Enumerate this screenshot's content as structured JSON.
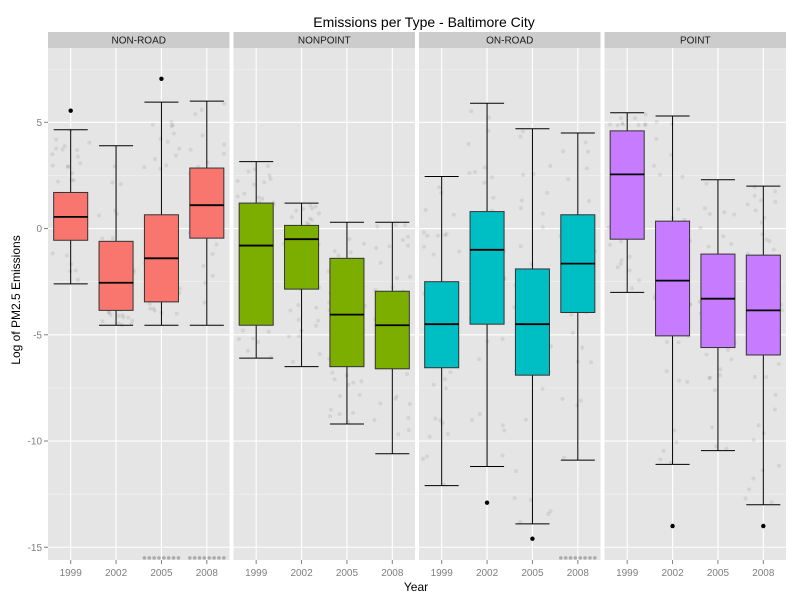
{
  "chart_data": {
    "type": "box",
    "title": "Emissions per Type - Baltimore City",
    "xlabel": "Year",
    "ylabel": "Log of PM2.5 Emissions",
    "ylim": [
      -15.6,
      8.5
    ],
    "yticks": [
      5,
      0,
      -5,
      -10,
      -15
    ],
    "ytick_labels": [
      "5",
      "0",
      "-5",
      "-10",
      "-15"
    ],
    "categories": [
      "1999",
      "2002",
      "2005",
      "2008"
    ],
    "grid": true,
    "panel_background": "#e5e5e5",
    "strip_background": "#cccccc",
    "facets": [
      {
        "name": "NON-ROAD",
        "color": "#f8766d",
        "boxes": [
          {
            "year": "1999",
            "whisker_low": -2.6,
            "q1": -0.55,
            "median": 0.55,
            "q3": 1.7,
            "whisker_high": 4.65,
            "outliers": [
              5.55
            ]
          },
          {
            "year": "2002",
            "whisker_low": -4.55,
            "q1": -3.85,
            "median": -2.55,
            "q3": -0.6,
            "whisker_high": 3.9,
            "outliers": []
          },
          {
            "year": "2005",
            "whisker_low": -4.55,
            "q1": -3.45,
            "median": -1.4,
            "q3": 0.65,
            "whisker_high": 5.95,
            "outliers": [
              7.05
            ]
          },
          {
            "year": "2008",
            "whisker_low": -4.55,
            "q1": -0.45,
            "median": 1.1,
            "q3": 2.85,
            "whisker_high": 6.0,
            "outliers": []
          }
        ]
      },
      {
        "name": "NONPOINT",
        "color": "#7cae00",
        "boxes": [
          {
            "year": "1999",
            "whisker_low": -6.1,
            "q1": -4.55,
            "median": -0.8,
            "q3": 1.2,
            "whisker_high": 3.15,
            "outliers": []
          },
          {
            "year": "2002",
            "whisker_low": -6.5,
            "q1": -2.85,
            "median": -0.5,
            "q3": 0.15,
            "whisker_high": 1.2,
            "outliers": []
          },
          {
            "year": "2005",
            "whisker_low": -9.2,
            "q1": -6.5,
            "median": -4.05,
            "q3": -1.4,
            "whisker_high": 0.3,
            "outliers": []
          },
          {
            "year": "2008",
            "whisker_low": -10.6,
            "q1": -6.6,
            "median": -4.55,
            "q3": -2.95,
            "whisker_high": 0.3,
            "outliers": []
          }
        ]
      },
      {
        "name": "ON-ROAD",
        "color": "#00bfc4",
        "boxes": [
          {
            "year": "1999",
            "whisker_low": -12.1,
            "q1": -6.55,
            "median": -4.5,
            "q3": -2.5,
            "whisker_high": 2.45,
            "outliers": []
          },
          {
            "year": "2002",
            "whisker_low": -11.2,
            "q1": -4.5,
            "median": -1.0,
            "q3": 0.8,
            "whisker_high": 5.9,
            "outliers": [
              -12.9
            ]
          },
          {
            "year": "2005",
            "whisker_low": -13.9,
            "q1": -6.9,
            "median": -4.5,
            "q3": -1.9,
            "whisker_high": 4.7,
            "outliers": [
              -14.6
            ]
          },
          {
            "year": "2008",
            "whisker_low": -10.9,
            "q1": -3.95,
            "median": -1.65,
            "q3": 0.65,
            "whisker_high": 4.5,
            "outliers": []
          }
        ]
      },
      {
        "name": "POINT",
        "color": "#c77cff",
        "boxes": [
          {
            "year": "1999",
            "whisker_low": -3.0,
            "q1": -0.5,
            "median": 2.55,
            "q3": 4.6,
            "whisker_high": 5.45,
            "outliers": []
          },
          {
            "year": "2002",
            "whisker_low": -11.1,
            "q1": -5.05,
            "median": -2.45,
            "q3": 0.35,
            "whisker_high": 5.3,
            "outliers": [
              -14.0
            ]
          },
          {
            "year": "2005",
            "whisker_low": -10.45,
            "q1": -5.6,
            "median": -3.3,
            "q3": -1.2,
            "whisker_high": 2.3,
            "outliers": []
          },
          {
            "year": "2008",
            "whisker_low": -13.0,
            "q1": -5.95,
            "median": -3.85,
            "q3": -1.25,
            "whisker_high": 2.0,
            "outliers": [
              -14.0
            ]
          }
        ]
      }
    ]
  }
}
